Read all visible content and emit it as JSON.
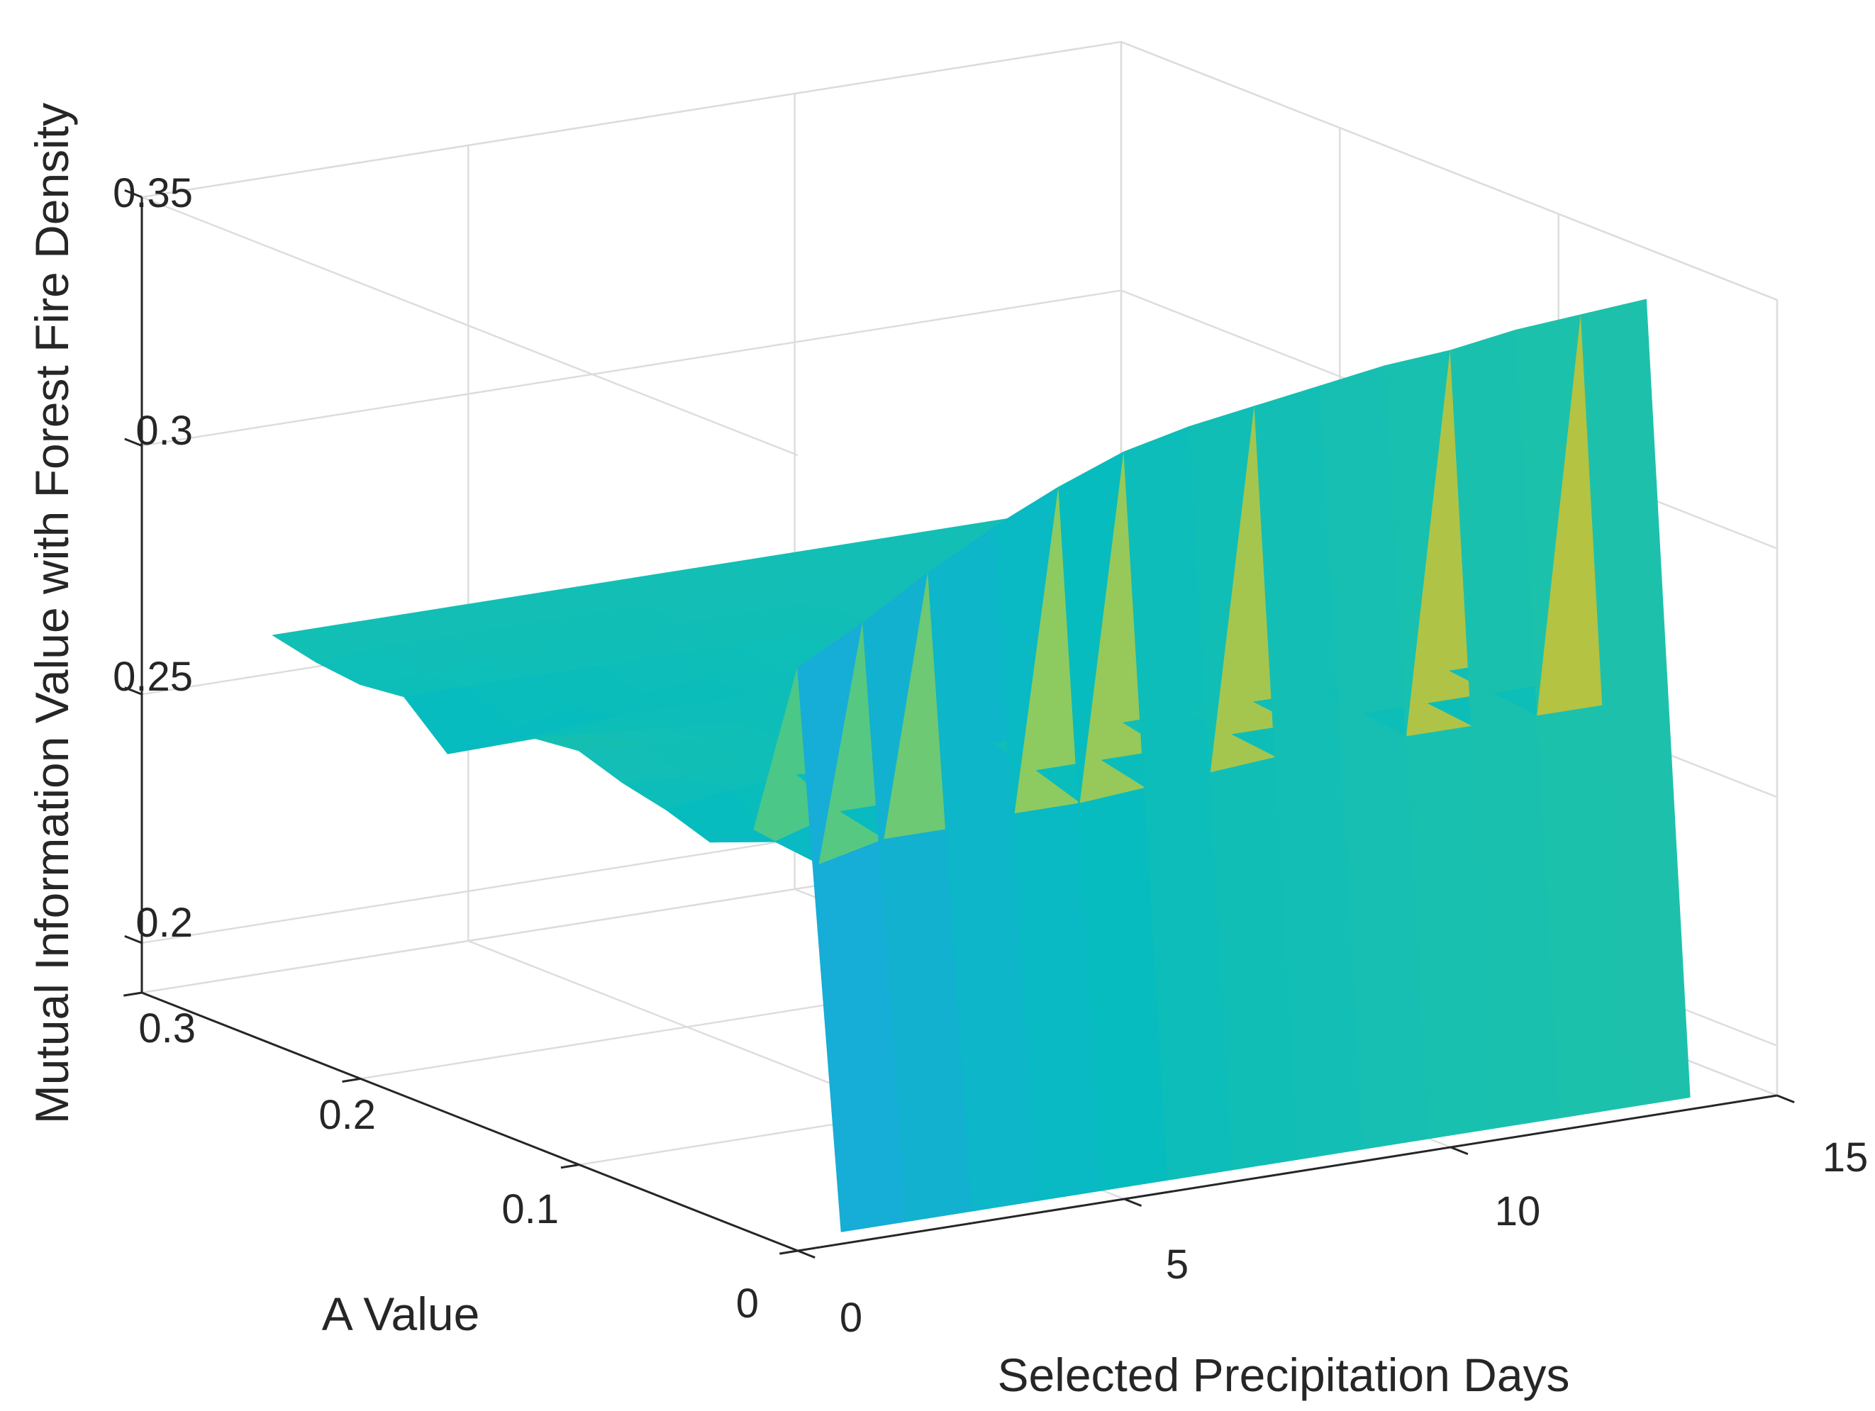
{
  "chart_data": {
    "type": "surface",
    "title": "",
    "xlabel": "Selected Precipitation Days",
    "ylabel": "A Value",
    "zlabel": "Mutual Information Value with Forest Fire Density",
    "xlim": [
      0,
      15
    ],
    "ylim": [
      0,
      0.3
    ],
    "zlim": [
      0.19,
      0.35
    ],
    "x_ticks": [
      0,
      5,
      10,
      15
    ],
    "x_tick_labels": [
      "0",
      "5",
      "10",
      "15"
    ],
    "y_ticks": [
      0,
      0.1,
      0.2,
      0.3
    ],
    "y_tick_labels": [
      "0",
      "0.1",
      "0.2",
      "0.3"
    ],
    "z_ticks": [
      0.2,
      0.25,
      0.3,
      0.35
    ],
    "z_tick_labels": [
      "0.2",
      "0.25",
      "0.3",
      "0.35"
    ],
    "grid": true,
    "colormap": "parula",
    "colormap_stops": [
      "#3e26a8",
      "#4743e6",
      "#2e7ff8",
      "#1ca8de",
      "#06bcbf",
      "#36c695",
      "#8dcb60",
      "#d4bc2a",
      "#fbbe3c",
      "#f9fb15"
    ],
    "surface": {
      "x": [
        1,
        2,
        3,
        4,
        5,
        6,
        7,
        8,
        9,
        10,
        11,
        12,
        13,
        14
      ],
      "y": [
        0.01,
        0.03,
        0.05,
        0.07,
        0.09,
        0.11,
        0.13,
        0.15,
        0.17,
        0.19,
        0.21,
        0.23,
        0.25,
        0.27
      ],
      "z": [
        [
          0.19,
          0.19,
          0.19,
          0.19,
          0.19,
          0.19,
          0.19,
          0.19,
          0.19,
          0.19,
          0.19,
          0.19,
          0.19,
          0.19
        ],
        [
          0.3,
          0.307,
          0.315,
          0.322,
          0.328,
          0.333,
          0.336,
          0.338,
          0.34,
          0.342,
          0.343,
          0.345,
          0.346,
          0.347
        ],
        [
          0.264,
          0.255,
          0.258,
          0.258,
          0.259,
          0.259,
          0.26,
          0.261,
          0.262,
          0.262,
          0.262,
          0.262,
          0.262,
          0.262
        ],
        [
          0.258,
          0.256,
          0.26,
          0.26,
          0.261,
          0.262,
          0.262,
          0.262,
          0.263,
          0.263,
          0.263,
          0.263,
          0.263,
          0.263
        ],
        [
          0.261,
          0.263,
          0.264,
          0.262,
          0.263,
          0.264,
          0.264,
          0.264,
          0.264,
          0.264,
          0.264,
          0.264,
          0.264,
          0.264
        ],
        [
          0.263,
          0.262,
          0.263,
          0.262,
          0.263,
          0.264,
          0.264,
          0.264,
          0.264,
          0.264,
          0.264,
          0.264,
          0.264,
          0.264
        ],
        [
          0.266,
          0.265,
          0.264,
          0.263,
          0.263,
          0.263,
          0.264,
          0.264,
          0.264,
          0.264,
          0.264,
          0.264,
          0.264,
          0.264
        ],
        [
          0.265,
          0.264,
          0.263,
          0.262,
          0.262,
          0.263,
          0.263,
          0.263,
          0.263,
          0.263,
          0.263,
          0.263,
          0.263,
          0.263
        ],
        [
          0.26,
          0.261,
          0.262,
          0.262,
          0.262,
          0.263,
          0.263,
          0.263,
          0.263,
          0.263,
          0.263,
          0.263,
          0.263,
          0.263
        ],
        [
          0.255,
          0.258,
          0.26,
          0.261,
          0.262,
          0.262,
          0.263,
          0.263,
          0.263,
          0.263,
          0.263,
          0.263,
          0.263,
          0.263
        ],
        [
          0.263,
          0.263,
          0.263,
          0.263,
          0.263,
          0.263,
          0.263,
          0.264,
          0.264,
          0.264,
          0.264,
          0.264,
          0.264,
          0.264
        ],
        [
          0.262,
          0.262,
          0.263,
          0.263,
          0.263,
          0.264,
          0.264,
          0.264,
          0.264,
          0.264,
          0.264,
          0.264,
          0.264,
          0.264
        ],
        [
          0.263,
          0.264,
          0.264,
          0.264,
          0.264,
          0.264,
          0.264,
          0.264,
          0.264,
          0.264,
          0.264,
          0.264,
          0.264,
          0.264
        ],
        [
          0.265,
          0.265,
          0.265,
          0.265,
          0.265,
          0.265,
          0.265,
          0.265,
          0.265,
          0.265,
          0.265,
          0.265,
          0.265,
          0.265
        ]
      ]
    }
  }
}
